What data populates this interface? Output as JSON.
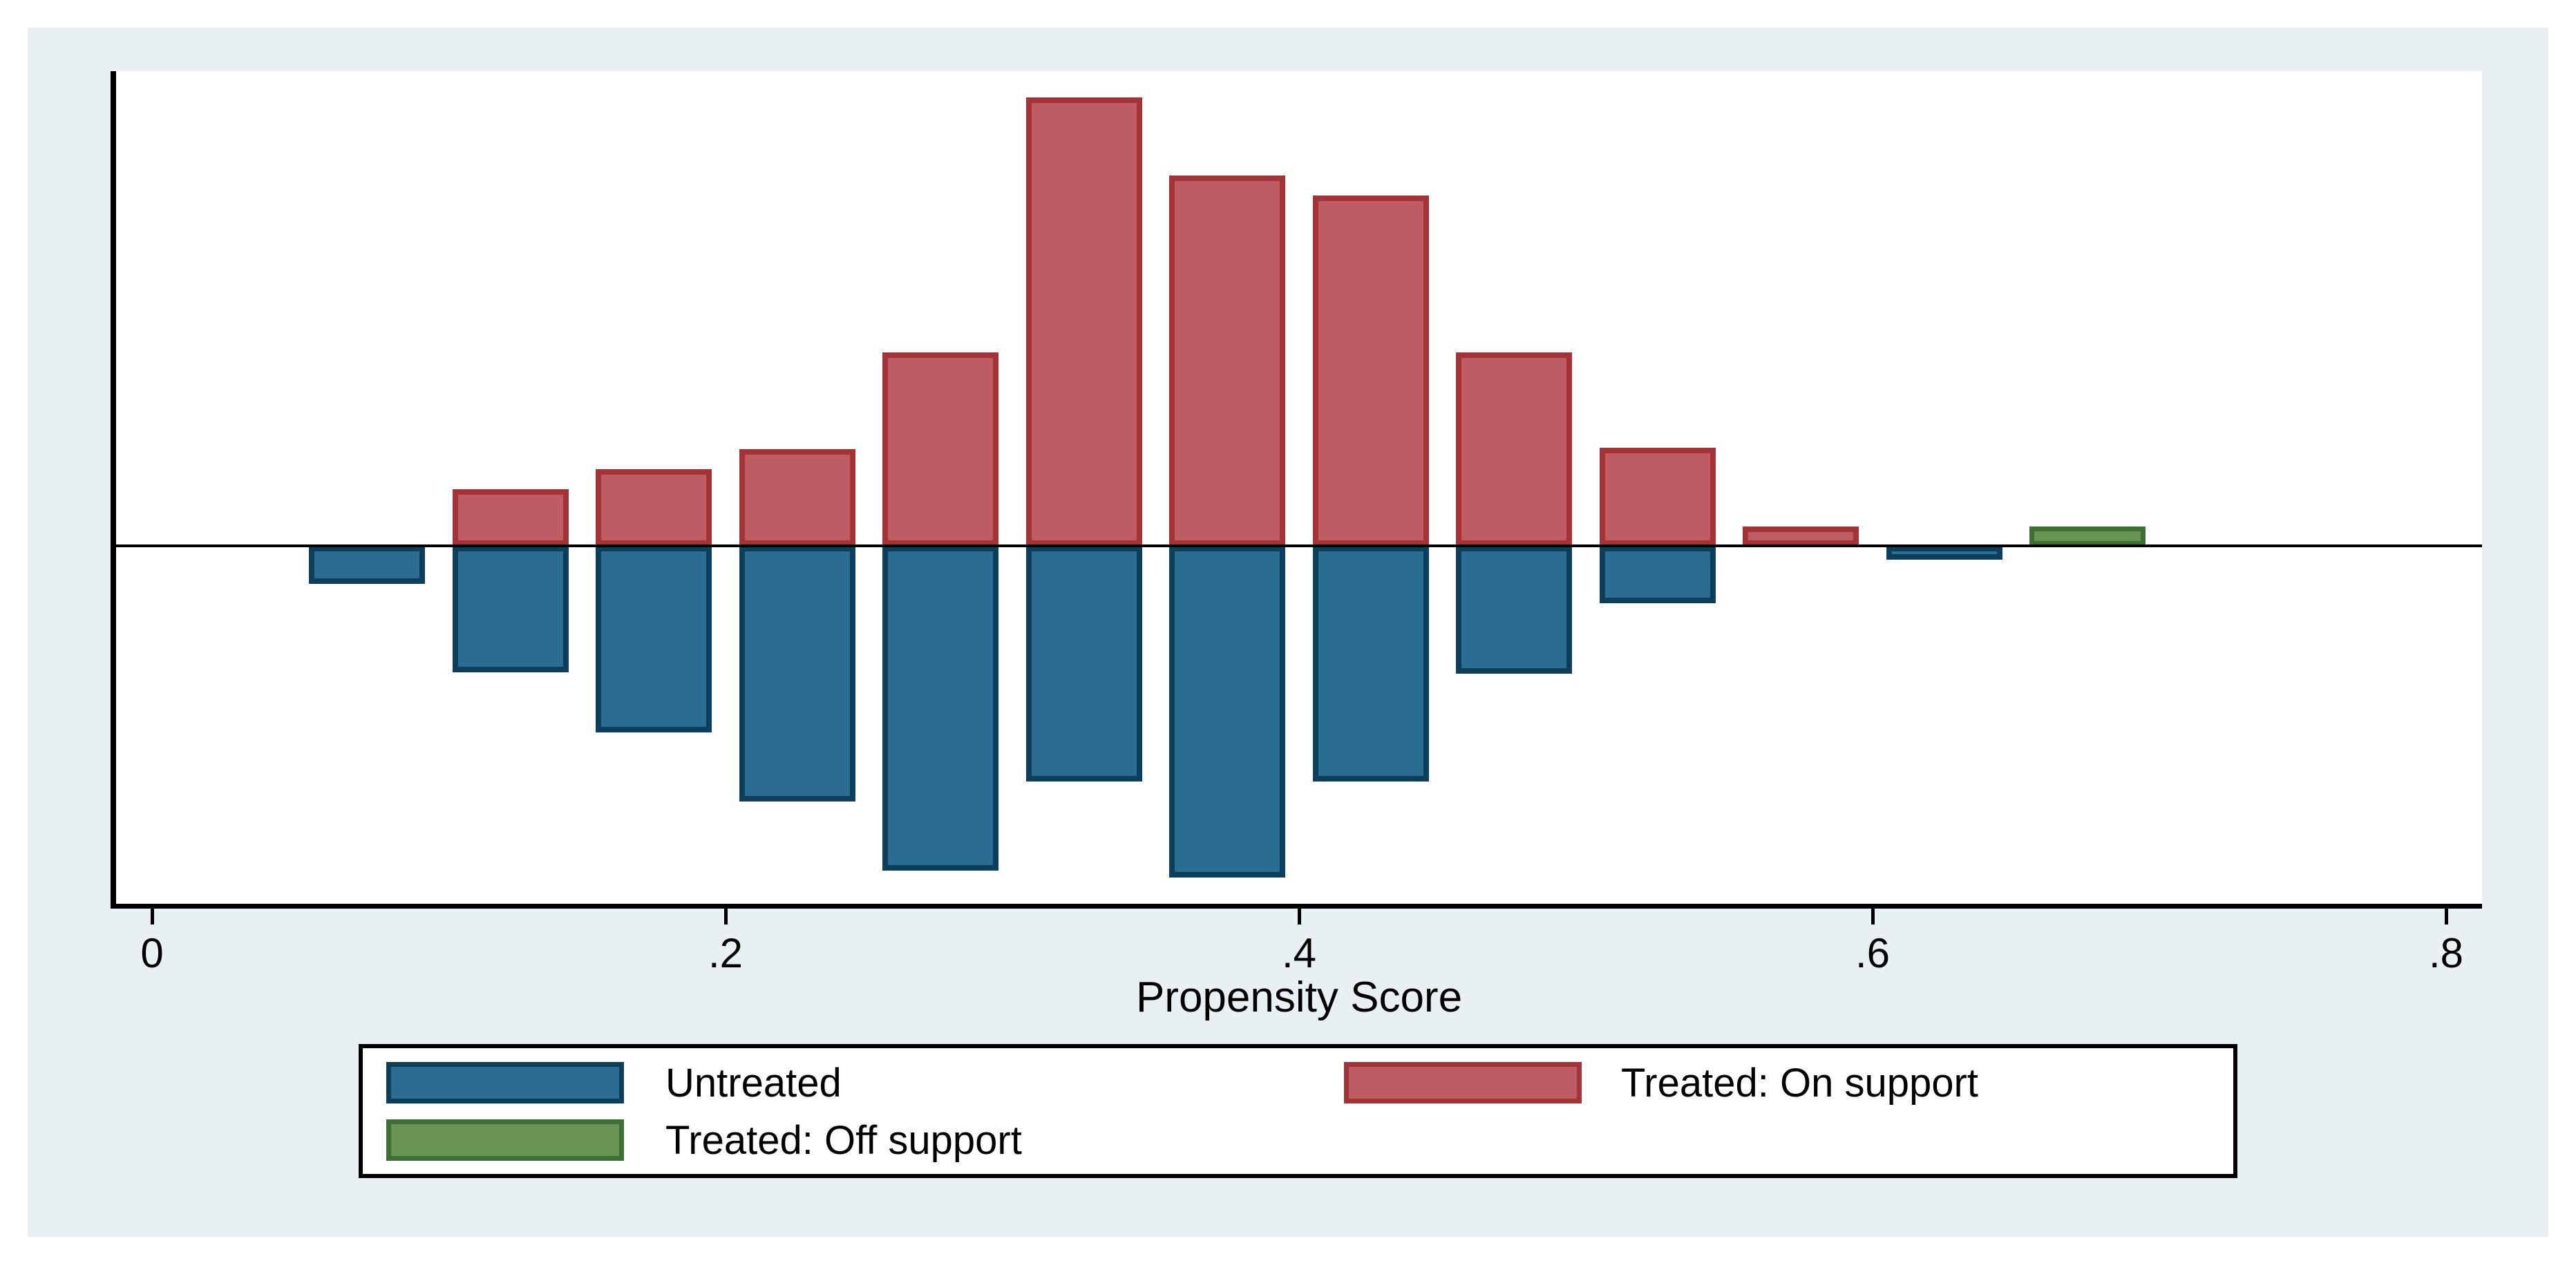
{
  "figure": {
    "xlabel": "Propensity Score",
    "x_ticks": [
      {
        "label": "0",
        "value": 0.0
      },
      {
        "label": ".2",
        "value": 0.2
      },
      {
        "label": ".4",
        "value": 0.4
      },
      {
        "label": ".6",
        "value": 0.6
      },
      {
        "label": ".8",
        "value": 0.8
      }
    ],
    "legend": {
      "items": [
        {
          "label": "Untreated",
          "series": "untreated",
          "fill": "#2a6d91",
          "border": "#0d3e5c",
          "row": 1,
          "col": 1
        },
        {
          "label": "Treated: On support",
          "series": "treated_on",
          "fill": "#bd5c62",
          "border": "#a43338",
          "row": 1,
          "col": 2
        },
        {
          "label": "Treated: Off support",
          "series": "treated_off",
          "fill": "#699354",
          "border": "#3d7033",
          "row": 2,
          "col": 1
        }
      ]
    },
    "colors": {
      "figure_background": "#e8f0f4",
      "plot_background": "#ffffff",
      "axis": "#000000",
      "treated_on_fill": "#bd5c62",
      "treated_on_border": "#a43338",
      "untreated_fill": "#2a6d91",
      "untreated_border": "#0d3e5c",
      "treated_off_fill": "#699354",
      "treated_off_border": "#3d7033"
    }
  },
  "chart_data": {
    "type": "bar",
    "subtype": "diverging-histogram",
    "title": "",
    "xlabel": "Propensity Score",
    "ylabel": "",
    "xlim": [
      0,
      0.8
    ],
    "x_tick_values": [
      0,
      0.2,
      0.4,
      0.6,
      0.8
    ],
    "grid": false,
    "legend_position": "bottom",
    "bin_width": 0.05,
    "bin_centers": [
      0.075,
      0.125,
      0.175,
      0.225,
      0.275,
      0.325,
      0.375,
      0.425,
      0.475,
      0.525,
      0.575,
      0.625,
      0.675
    ],
    "series": [
      {
        "name": "Treated: On support",
        "direction": "up",
        "values": [
          0,
          0.126,
          0.171,
          0.216,
          0.431,
          1.0,
          0.826,
          0.781,
          0.431,
          0.219,
          0.043,
          0,
          0
        ]
      },
      {
        "name": "Untreated",
        "direction": "down",
        "values": [
          0.085,
          0.282,
          0.416,
          0.57,
          0.724,
          0.525,
          0.74,
          0.525,
          0.285,
          0.128,
          0,
          0.031,
          0
        ]
      },
      {
        "name": "Treated: Off support",
        "direction": "up",
        "values": [
          0,
          0,
          0,
          0,
          0,
          0,
          0,
          0,
          0,
          0,
          0,
          0,
          0.043
        ]
      }
    ],
    "note": "Vertical axis is unlabeled in the source figure; series values are relative frequencies normalized so the tallest Treated-On-support bin equals 1.0. Bars above the horizontal zero line are treated, bars below are untreated."
  }
}
